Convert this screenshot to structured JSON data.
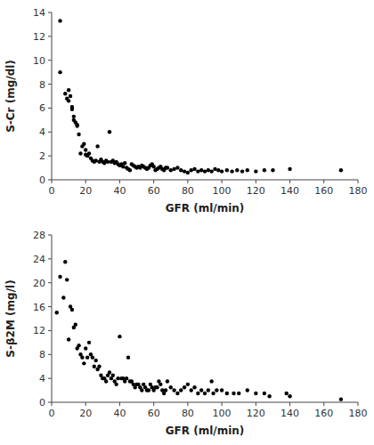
{
  "chart_data": [
    {
      "type": "scatter",
      "x": [
        5,
        5,
        8,
        9,
        10,
        10,
        11,
        12,
        12,
        13,
        13,
        14,
        15,
        15,
        16,
        17,
        18,
        19,
        20,
        20,
        21,
        22,
        23,
        24,
        25,
        26,
        27,
        28,
        29,
        30,
        31,
        32,
        33,
        34,
        35,
        36,
        37,
        38,
        39,
        40,
        41,
        42,
        43,
        44,
        45,
        46,
        47,
        48,
        49,
        50,
        51,
        52,
        53,
        54,
        55,
        56,
        57,
        58,
        59,
        60,
        61,
        62,
        63,
        64,
        65,
        66,
        67,
        68,
        70,
        72,
        74,
        76,
        78,
        80,
        82,
        84,
        86,
        88,
        90,
        92,
        94,
        96,
        98,
        100,
        103,
        106,
        109,
        112,
        115,
        120,
        125,
        130,
        140,
        170
      ],
      "values": [
        13.3,
        9.0,
        7.2,
        6.8,
        6.6,
        7.5,
        7.0,
        5.9,
        6.1,
        5.0,
        5.3,
        4.8,
        4.5,
        4.6,
        3.8,
        2.2,
        2.8,
        3.0,
        2.1,
        2.5,
        2.0,
        2.2,
        1.8,
        1.6,
        1.5,
        1.6,
        2.8,
        1.5,
        1.7,
        1.5,
        1.4,
        1.6,
        1.5,
        4.0,
        1.5,
        1.6,
        1.4,
        1.5,
        1.3,
        1.2,
        1.3,
        1.1,
        1.4,
        1.0,
        0.9,
        0.8,
        1.3,
        1.2,
        1.1,
        1.0,
        1.1,
        1.0,
        1.2,
        1.1,
        1.0,
        0.9,
        1.0,
        1.2,
        1.3,
        1.1,
        0.8,
        0.9,
        1.0,
        1.1,
        0.9,
        0.8,
        1.0,
        1.0,
        0.8,
        0.9,
        1.0,
        0.8,
        0.7,
        0.6,
        0.8,
        0.9,
        0.7,
        0.8,
        0.7,
        0.8,
        0.7,
        0.9,
        0.8,
        0.7,
        0.8,
        0.7,
        0.8,
        0.7,
        0.8,
        0.7,
        0.8,
        0.8,
        0.9,
        0.8
      ],
      "color": "#000000",
      "xlabel": "GFR (ml/min)",
      "ylabel": "S-Cr (mg/dl)",
      "xlim": [
        0,
        180
      ],
      "ylim": [
        0,
        14
      ],
      "xticks": [
        0,
        20,
        40,
        60,
        80,
        100,
        120,
        140,
        160,
        180
      ],
      "yticks": [
        0,
        2,
        4,
        6,
        8,
        10,
        12,
        14
      ]
    },
    {
      "type": "scatter",
      "x": [
        3,
        5,
        7,
        8,
        9,
        10,
        11,
        12,
        13,
        14,
        15,
        16,
        17,
        18,
        19,
        20,
        21,
        22,
        23,
        24,
        25,
        26,
        27,
        28,
        29,
        30,
        31,
        32,
        33,
        34,
        35,
        36,
        37,
        38,
        39,
        40,
        41,
        42,
        43,
        44,
        45,
        46,
        47,
        48,
        49,
        50,
        51,
        52,
        53,
        54,
        55,
        56,
        57,
        58,
        59,
        60,
        61,
        62,
        63,
        64,
        65,
        66,
        67,
        68,
        70,
        72,
        74,
        76,
        78,
        80,
        82,
        84,
        86,
        88,
        90,
        92,
        94,
        95,
        97,
        100,
        103,
        107,
        110,
        115,
        120,
        125,
        128,
        138,
        140,
        170
      ],
      "values": [
        15.0,
        21.0,
        17.5,
        23.5,
        20.5,
        10.5,
        16.0,
        15.5,
        12.5,
        13.0,
        9.0,
        9.5,
        8.0,
        7.5,
        6.5,
        9.0,
        7.5,
        10.0,
        8.0,
        7.5,
        6.0,
        7.0,
        5.5,
        6.0,
        4.5,
        4.0,
        4.0,
        3.5,
        4.5,
        5.0,
        4.0,
        4.5,
        3.5,
        3.0,
        4.0,
        11.0,
        4.0,
        4.0,
        3.5,
        4.0,
        7.5,
        3.5,
        3.5,
        3.0,
        2.5,
        3.0,
        3.0,
        2.5,
        2.0,
        3.0,
        2.5,
        2.0,
        2.0,
        3.0,
        2.5,
        2.0,
        2.5,
        2.5,
        3.5,
        3.0,
        2.0,
        1.5,
        2.0,
        3.5,
        2.5,
        2.0,
        1.5,
        2.0,
        2.5,
        3.0,
        2.0,
        2.5,
        1.5,
        2.0,
        1.5,
        2.0,
        3.5,
        1.5,
        2.0,
        2.0,
        1.5,
        1.5,
        1.5,
        2.0,
        1.5,
        1.5,
        1.0,
        1.5,
        1.0,
        0.5
      ],
      "color": "#000000",
      "xlabel": "GFR (ml/min)",
      "ylabel": "S-β2M (mg/l)",
      "xlim": [
        0,
        180
      ],
      "ylim": [
        0,
        28
      ],
      "xticks": [
        0,
        20,
        40,
        60,
        80,
        100,
        120,
        140,
        160,
        180
      ],
      "yticks": [
        0,
        4,
        8,
        12,
        16,
        20,
        24,
        28
      ]
    }
  ]
}
